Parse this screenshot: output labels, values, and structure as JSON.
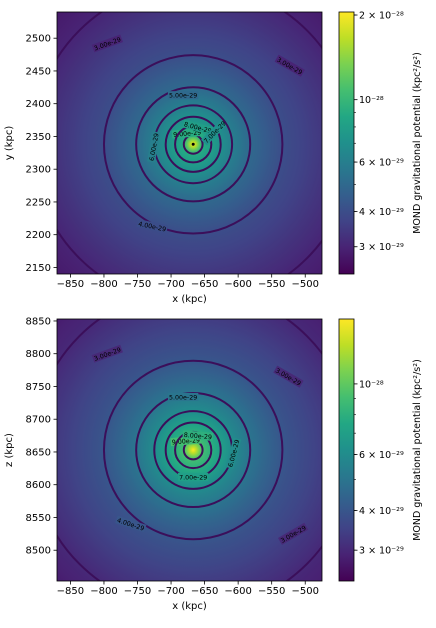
{
  "chart_data": [
    {
      "type": "heatmap",
      "xlabel": "x (kpc)",
      "ylabel": "y (kpc)",
      "xlim": [
        -870,
        -475
      ],
      "ylim": [
        2140,
        2540
      ],
      "xticks": [
        -850,
        -800,
        -750,
        -700,
        -650,
        -600,
        -550,
        -500
      ],
      "yticks": [
        2150,
        2200,
        2250,
        2300,
        2350,
        2400,
        2450,
        2500
      ],
      "center": {
        "x": -667,
        "y": 2338
      },
      "marker": {
        "x": -667,
        "y": 2338
      },
      "colorbar": {
        "label": "MOND gravitational potential (kpc²/s²)",
        "scale": "log",
        "ticks": [
          {
            "value": 2e-28,
            "label": "2 × 10⁻²⁸"
          },
          {
            "value": 1e-28,
            "label": "10⁻²⁸"
          },
          {
            "value": 6e-29,
            "label": "6 × 10⁻²⁹"
          },
          {
            "value": 4e-29,
            "label": "4 × 10⁻²⁹"
          },
          {
            "value": 3e-29,
            "label": "3 × 10⁻²⁹"
          }
        ],
        "vmin": 2.4e-29,
        "vmax": 2.05e-28
      },
      "contours": [
        {
          "value": 9e-29,
          "radius": 14,
          "label": "9.00e-29",
          "label_at": {
            "x": -676,
            "y": 2355
          },
          "label_angle": -5
        },
        {
          "value": 8e-29,
          "radius": 27,
          "label": "8.00e-29",
          "label_at": {
            "x": -660,
            "y": 2364
          },
          "label_angle": 15
        },
        {
          "value": 7e-29,
          "radius": 41,
          "label": "7.00e-29",
          "label_at": {
            "x": -635,
            "y": 2357
          },
          "label_angle": -45
        },
        {
          "value": 6e-29,
          "radius": 58,
          "label": "6.00e-29",
          "label_at": {
            "x": -726,
            "y": 2334
          },
          "label_angle": -80
        },
        {
          "value": 5e-29,
          "radius": 85,
          "label": "5.00e-29",
          "label_at": {
            "x": -682,
            "y": 2413
          },
          "label_angle": 0
        },
        {
          "value": 4e-29,
          "radius": 133,
          "label": "4.00e-29",
          "label_at": {
            "x": -728,
            "y": 2213
          },
          "label_angle": 12
        },
        {
          "value": 3e-29,
          "radius": 240,
          "label": "3.00e-29",
          "label_at": {
            "x": -795,
            "y": 2492
          },
          "label_angle": -20,
          "label2": "3.00e-29",
          "label2_at": {
            "x": -523,
            "y": 2458
          },
          "label2_angle": 30
        }
      ]
    },
    {
      "type": "heatmap",
      "xlabel": "x (kpc)",
      "ylabel": "z (kpc)",
      "xlim": [
        -870,
        -475
      ],
      "ylim": [
        8453,
        8853
      ],
      "xticks": [
        -850,
        -800,
        -750,
        -700,
        -650,
        -600,
        -550,
        -500
      ],
      "yticks": [
        8500,
        8550,
        8600,
        8650,
        8700,
        8750,
        8800,
        8850
      ],
      "center": {
        "x": -667,
        "y": 8653
      },
      "colorbar": {
        "label": "MOND gravitational potential (kpc²/s²)",
        "scale": "log",
        "ticks": [
          {
            "value": 1e-28,
            "label": "10⁻²⁸"
          },
          {
            "value": 6e-29,
            "label": "6 × 10⁻²⁹"
          },
          {
            "value": 4e-29,
            "label": "4 × 10⁻²⁹"
          },
          {
            "value": 3e-29,
            "label": "3 × 10⁻²⁹"
          }
        ],
        "vmin": 2.4e-29,
        "vmax": 1.6e-28
      },
      "contours": [
        {
          "value": 9e-29,
          "radius": 14,
          "label": "9.00e-29",
          "label_at": {
            "x": -678,
            "y": 8667
          },
          "label_angle": -5
        },
        {
          "value": 8e-29,
          "radius": 27,
          "label": "8.00e-29",
          "label_at": {
            "x": -660,
            "y": 8675
          },
          "label_angle": 5
        },
        {
          "value": 7e-29,
          "radius": 41,
          "label": "7.00e-29",
          "label_at": {
            "x": -667,
            "y": 8612
          },
          "label_angle": 0
        },
        {
          "value": 6e-29,
          "radius": 58,
          "label": "6.00e-29",
          "label_at": {
            "x": -607,
            "y": 8648
          },
          "label_angle": -75
        },
        {
          "value": 5e-29,
          "radius": 85,
          "label": "5.00e-29",
          "label_at": {
            "x": -682,
            "y": 8734
          },
          "label_angle": 0
        },
        {
          "value": 4e-29,
          "radius": 133,
          "label": "4.00e-29",
          "label_at": {
            "x": -760,
            "y": 8540
          },
          "label_angle": 18
        },
        {
          "value": 3e-29,
          "radius": 240,
          "label": "3.00e-29",
          "label_at": {
            "x": -795,
            "y": 8800
          },
          "label_angle": -20,
          "label2": "3.00e-29",
          "label2_at": {
            "x": -525,
            "y": 8765
          },
          "label2_angle": 30,
          "label3": "3.00e-29",
          "label3_at": {
            "x": -518,
            "y": 8525
          },
          "label3_angle": -30
        }
      ]
    }
  ]
}
